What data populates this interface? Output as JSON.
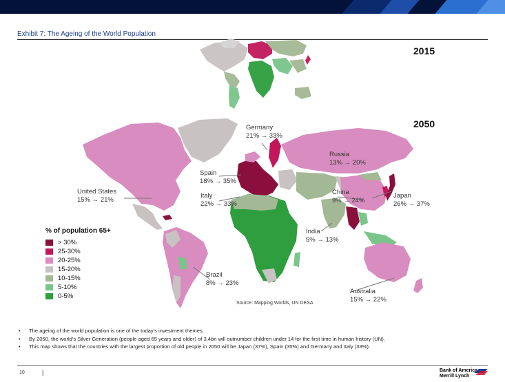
{
  "header": {
    "exhibit_title": "Exhibit 7: The Ageing of the World Population"
  },
  "map": {
    "year_small": "2015",
    "year_large": "2050",
    "countries": [
      {
        "name": "Germany",
        "change": "21% → 33%"
      },
      {
        "name": "Russia",
        "change": "13% → 20%"
      },
      {
        "name": "Spain",
        "change": "18% → 35%"
      },
      {
        "name": "United States",
        "change": "15% → 21%"
      },
      {
        "name": "Italy",
        "change": "22% → 33%"
      },
      {
        "name": "China",
        "change": "9% → 24%"
      },
      {
        "name": "Japan",
        "change": "26% → 37%"
      },
      {
        "name": "India",
        "change": "5% → 13%"
      },
      {
        "name": "Brazil",
        "change": "8% → 23%"
      },
      {
        "name": "Australia",
        "change": "15% → 22%"
      }
    ],
    "source": "Source: Mapping Worlds, UN DESA",
    "legend": {
      "title": "% of population 65+",
      "items": [
        {
          "label": "> 30%",
          "color": "#8b0f3c"
        },
        {
          "label": "25-30%",
          "color": "#c2175b"
        },
        {
          "label": "20-25%",
          "color": "#d98cc0"
        },
        {
          "label": "15-20%",
          "color": "#c9c2c2"
        },
        {
          "label": "10-15%",
          "color": "#a3b894"
        },
        {
          "label": "5-10%",
          "color": "#79c58a"
        },
        {
          "label": "0-5%",
          "color": "#2e9e3e"
        }
      ]
    }
  },
  "bullets": [
    "The ageing of the world population is one of the today's investment themes.",
    "By 2050, the world's Silver Generation (people aged 65 years and older) of 3.4bn will outnumber children under 14 for the first time in human history (UN).",
    "This map shows that the countries with the largest proportion of old people in 2050 will be Japan (37%), Spain (35%) and Germany and Italy (33%)."
  ],
  "footer": {
    "page_number": "10",
    "separator": "|",
    "brand_line1": "Bank of America",
    "brand_line2": "Merrill Lynch"
  }
}
